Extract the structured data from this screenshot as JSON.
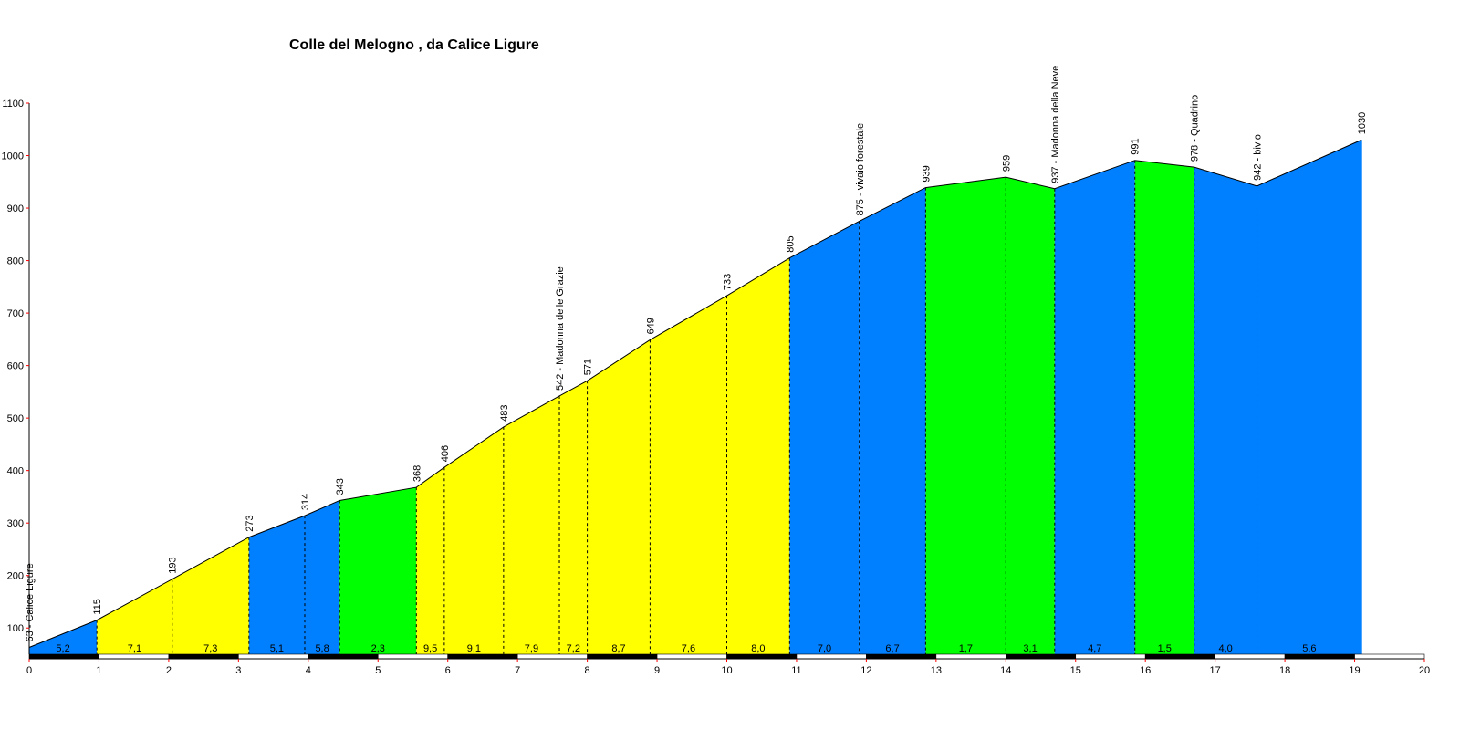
{
  "chart_data": {
    "type": "area",
    "title": "Colle del Melogno , da Calice Ligure",
    "xlabel": "",
    "ylabel": "",
    "xlim": [
      0,
      20
    ],
    "ylim": [
      50,
      1100
    ],
    "yticks": [
      100,
      200,
      300,
      400,
      500,
      600,
      700,
      800,
      900,
      1000,
      1100
    ],
    "xticks": [
      0,
      1,
      2,
      3,
      4,
      5,
      6,
      7,
      8,
      9,
      10,
      11,
      12,
      13,
      14,
      15,
      16,
      17,
      18,
      19,
      20
    ],
    "ytick_labels": [
      "100",
      "200",
      "300",
      "400",
      "500",
      "600",
      "700",
      "800",
      "900",
      "1000",
      "1100"
    ],
    "xtick_labels": [
      "0",
      "1",
      "2",
      "3",
      "4",
      "5",
      "6",
      "7",
      "8",
      "9",
      "10",
      "11",
      "12",
      "13",
      "14",
      "15",
      "16",
      "17",
      "18",
      "19",
      "20"
    ],
    "points": [
      {
        "x": 0.0,
        "y": 63,
        "label": "63 - Calice Ligure"
      },
      {
        "x": 0.97,
        "y": 115,
        "label": "115"
      },
      {
        "x": 2.05,
        "y": 193,
        "label": "193"
      },
      {
        "x": 3.15,
        "y": 273,
        "label": "273"
      },
      {
        "x": 3.95,
        "y": 314,
        "label": "314"
      },
      {
        "x": 4.45,
        "y": 343,
        "label": "343"
      },
      {
        "x": 5.55,
        "y": 368,
        "label": "368"
      },
      {
        "x": 5.95,
        "y": 406,
        "label": "406"
      },
      {
        "x": 6.8,
        "y": 483,
        "label": "483"
      },
      {
        "x": 7.6,
        "y": 542,
        "label": "542 - Madonna delle Grazie"
      },
      {
        "x": 8.0,
        "y": 571,
        "label": "571"
      },
      {
        "x": 8.9,
        "y": 649,
        "label": "649"
      },
      {
        "x": 10.0,
        "y": 733,
        "label": "733"
      },
      {
        "x": 10.9,
        "y": 805,
        "label": "805"
      },
      {
        "x": 11.9,
        "y": 875,
        "label": "875 - vivaio forestale"
      },
      {
        "x": 12.85,
        "y": 939,
        "label": "939"
      },
      {
        "x": 14.0,
        "y": 959,
        "label": "959"
      },
      {
        "x": 14.7,
        "y": 937,
        "label": "937 - Madonna della Neve"
      },
      {
        "x": 15.85,
        "y": 991,
        "label": "991"
      },
      {
        "x": 16.7,
        "y": 978,
        "label": "978 - Quadrino"
      },
      {
        "x": 17.6,
        "y": 942,
        "label": "942 - bivio"
      },
      {
        "x": 19.1,
        "y": 1030,
        "label": "1030"
      }
    ],
    "segments": [
      {
        "start": 0,
        "end": 1,
        "color": "#0080ff",
        "gradient": "5,2"
      },
      {
        "start": 1,
        "end": 3,
        "color": "#ffff00",
        "gradient": "7,1"
      },
      {
        "start": 2,
        "end": 3,
        "color": "#ffff00",
        "gradient": "7,3"
      },
      {
        "start": 3,
        "end": 4,
        "color": "#0080ff",
        "gradient": "5,1"
      },
      {
        "start": 4,
        "end": 5,
        "color": "#0080ff",
        "gradient": "5,8"
      },
      {
        "start": 5,
        "end": 6,
        "color": "#00ff00",
        "gradient": "2,3"
      },
      {
        "start": 6,
        "end": 7,
        "color": "#ffff00",
        "gradient": "9,5"
      },
      {
        "start": 7,
        "end": 8,
        "color": "#ffff00",
        "gradient": "9,1"
      },
      {
        "start": 8,
        "end": 9,
        "color": "#ffff00",
        "gradient": "7,9"
      },
      {
        "start": 9,
        "end": 10,
        "color": "#ffff00",
        "gradient": "7,2"
      },
      {
        "start": 10,
        "end": 11,
        "color": "#ffff00",
        "gradient": "8,7"
      },
      {
        "start": 11,
        "end": 12,
        "color": "#ffff00",
        "gradient": "7,6"
      },
      {
        "start": 12,
        "end": 13,
        "color": "#ffff00",
        "gradient": "8,0"
      },
      {
        "start": 13,
        "end": 14,
        "color": "#0080ff",
        "gradient": "7,0"
      },
      {
        "start": 14,
        "end": 15,
        "color": "#0080ff",
        "gradient": "6,7"
      },
      {
        "start": 15,
        "end": 16,
        "color": "#00ff00",
        "gradient": "1,7"
      },
      {
        "start": 16,
        "end": 17,
        "color": "#00ff00",
        "gradient": "3,1"
      },
      {
        "start": 17,
        "end": 18,
        "color": "#0080ff",
        "gradient": "4,7"
      },
      {
        "start": 18,
        "end": 19,
        "color": "#00ff00",
        "gradient": "1,5"
      },
      {
        "start": 19,
        "end": 20,
        "color": "#0080ff",
        "gradient": "4,0"
      },
      {
        "start": 20,
        "end": 21,
        "color": "#0080ff",
        "gradient": "5,6"
      }
    ],
    "colors": {
      "yellow": "#ffff00",
      "blue": "#0080ff",
      "green": "#00ff00",
      "axis": "#000000",
      "tick_mark": "#ff0000",
      "background": "#ffffff"
    },
    "grid": false,
    "legend": "none"
  }
}
